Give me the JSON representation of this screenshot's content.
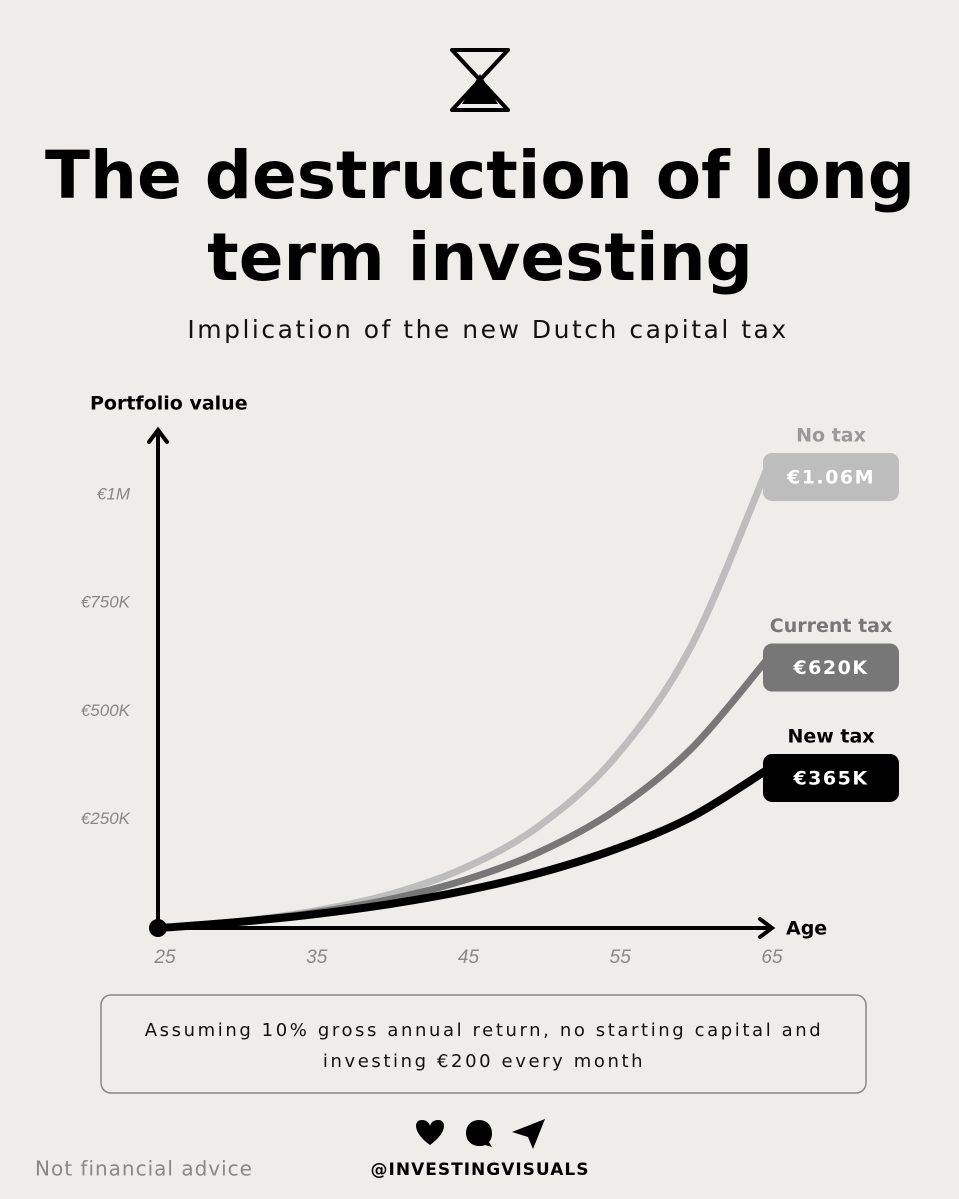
{
  "chart_data": {
    "type": "line",
    "title": [
      "The destruction of long",
      "term investing"
    ],
    "subtitle": "Implication of the new Dutch capital tax",
    "y_label": "Portfolio value",
    "x_label": "Age",
    "x": [
      25,
      30,
      35,
      40,
      45,
      50,
      55,
      60,
      65
    ],
    "xlim": [
      25,
      65
    ],
    "xticks": [
      25,
      35,
      45,
      55,
      65
    ],
    "ylim": [
      0,
      1150000
    ],
    "yticks": [
      {
        "value": 250000,
        "label": "€250K"
      },
      {
        "value": 500000,
        "label": "€500K"
      },
      {
        "value": 750000,
        "label": "€750K"
      },
      {
        "value": 1000000,
        "label": "€1M"
      }
    ],
    "series": [
      {
        "name": "No tax",
        "color": "#bdbdbd",
        "values": [
          0,
          14650,
          38250,
          76250,
          137460,
          236040,
          394790,
          650450,
          1060000
        ],
        "value_labels": [
          null,
          null,
          null,
          null,
          null,
          null,
          null,
          null,
          "€1.06M"
        ]
      },
      {
        "name": "Current tax",
        "color": "#777777",
        "values": [
          0,
          14080,
          34770,
          65170,
          109830,
          175460,
          271880,
          413560,
          620000
        ],
        "value_labels": [
          null,
          null,
          null,
          null,
          null,
          null,
          null,
          null,
          "€620K"
        ]
      },
      {
        "name": "New tax",
        "color": "#000000",
        "values": [
          0,
          13400,
          31000,
          54500,
          85500,
          127000,
          182000,
          256000,
          365000
        ],
        "value_labels": [
          null,
          null,
          null,
          null,
          null,
          null,
          null,
          null,
          "€365K"
        ]
      }
    ],
    "note": [
      "Assuming 10% gross annual return, no starting capital and",
      "investing €200 every month"
    ]
  },
  "footer": {
    "disclaimer": "Not financial advice",
    "handle": "@INVESTINGVISUALS"
  }
}
